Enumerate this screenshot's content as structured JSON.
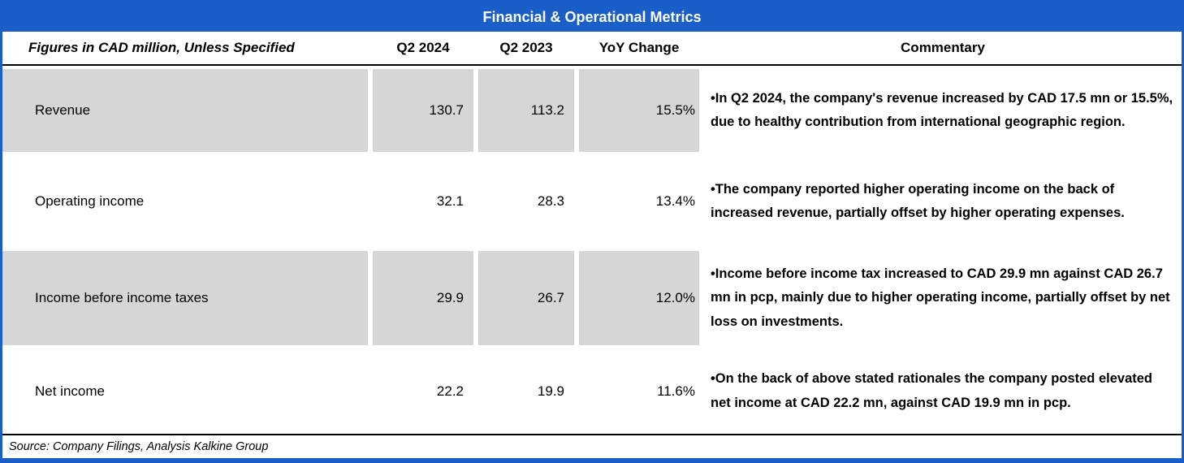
{
  "title": "Financial & Operational Metrics",
  "colors": {
    "accent_blue": "#1A5EC8",
    "row_shade_gray": "#D6D6D6"
  },
  "table": {
    "col_headers": {
      "label": "Figures in CAD million, Unless Specified",
      "q2_2024": "Q2 2024",
      "q2_2023": "Q2 2023",
      "yoy": "YoY Change",
      "commentary": "Commentary"
    },
    "rows": [
      {
        "label": "Revenue",
        "q2_2024": "130.7",
        "q2_2023": "113.2",
        "yoy": "15.5%",
        "commentary": "•In Q2 2024, the company's revenue increased by CAD 17.5 mn or 15.5%, due to healthy contribution from international geographic region."
      },
      {
        "label": "Operating income",
        "q2_2024": "32.1",
        "q2_2023": "28.3",
        "yoy": "13.4%",
        "commentary": "•The company reported higher operating income on the back of increased revenue, partially offset by higher operating expenses."
      },
      {
        "label": "Income before income taxes",
        "q2_2024": "29.9",
        "q2_2023": "26.7",
        "yoy": "12.0%",
        "commentary": "•Income before income tax increased to CAD 29.9 mn against CAD 26.7 mn in pcp, mainly due to higher operating income, partially offset by net loss on investments."
      },
      {
        "label": "Net income",
        "q2_2024": "22.2",
        "q2_2023": "19.9",
        "yoy": "11.6%",
        "commentary": "•On the back of above stated rationales the company posted elevated net income at CAD 22.2 mn, against CAD 19.9 mn in pcp."
      }
    ]
  },
  "footer": {
    "source": "Source: Company Filings, Analysis Kalkine Group"
  }
}
